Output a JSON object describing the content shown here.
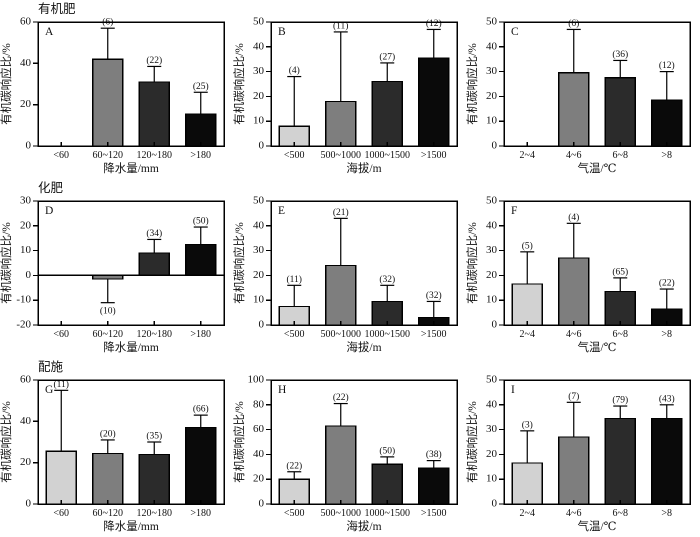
{
  "figure": {
    "background": "#ffffff",
    "axis_color": "#000000",
    "bar_colors": [
      "#d2d2d2",
      "#7e7e7e",
      "#2b2b2b",
      "#0a0a0a"
    ],
    "ylabel": "有机碳响应比/%",
    "row_titles": [
      "有机肥",
      "化肥",
      "配施"
    ]
  },
  "chart_data": [
    {
      "type": "bar",
      "panel": "A",
      "row_title": "有机肥",
      "ylabel": "有机碳响应比/%",
      "xlabel": "降水量/mm",
      "categories": [
        "<60",
        "60~120",
        "120~180",
        ">180"
      ],
      "ylim": [
        0,
        60
      ],
      "ytick_step": 20,
      "values": [
        null,
        42,
        31,
        15.5
      ],
      "errors": [
        null,
        15,
        7.5,
        10.5
      ],
      "counts": [
        null,
        "(6)",
        "(22)",
        "(25)"
      ]
    },
    {
      "type": "bar",
      "panel": "B",
      "row_title": "",
      "ylabel": "有机碳响应比/%",
      "xlabel": "海拔/m",
      "categories": [
        "<500",
        "500~1000",
        "1000~1500",
        ">1500"
      ],
      "ylim": [
        0,
        50
      ],
      "ytick_step": 10,
      "values": [
        8,
        18,
        26,
        35.5
      ],
      "errors": [
        20,
        28,
        7.5,
        11.5
      ],
      "counts": [
        "(4)",
        "(11)",
        "(27)",
        "(12)"
      ]
    },
    {
      "type": "bar",
      "panel": "C",
      "row_title": "",
      "ylabel": "有机碳响应比/%",
      "xlabel": "气温/℃",
      "categories": [
        "2~4",
        "4~6",
        "6~8",
        ">8"
      ],
      "ylim": [
        0,
        50
      ],
      "ytick_step": 10,
      "values": [
        null,
        29.5,
        27.5,
        18.5
      ],
      "errors": [
        null,
        17.5,
        7,
        11.5
      ],
      "counts": [
        null,
        "(6)",
        "(36)",
        "(12)"
      ]
    },
    {
      "type": "bar",
      "panel": "D",
      "row_title": "化肥",
      "ylabel": "有机碳响应比/%",
      "xlabel": "降水量/mm",
      "categories": [
        "<60",
        "60~120",
        "120~180",
        ">180"
      ],
      "ylim": [
        -20,
        30
      ],
      "ytick_step": 10,
      "values": [
        null,
        -1.5,
        9,
        12.5
      ],
      "errors": [
        null,
        9.5,
        5.5,
        7
      ],
      "counts": [
        null,
        "(10)",
        "(34)",
        "(50)"
      ]
    },
    {
      "type": "bar",
      "panel": "E",
      "row_title": "",
      "ylabel": "有机碳响应比/%",
      "xlabel": "海拔/m",
      "categories": [
        "<500",
        "500~1000",
        "1000~1500",
        ">1500"
      ],
      "ylim": [
        0,
        50
      ],
      "ytick_step": 10,
      "values": [
        7.5,
        24,
        9.5,
        3
      ],
      "errors": [
        8.5,
        19,
        6.5,
        6.5
      ],
      "counts": [
        "(11)",
        "(21)",
        "(32)",
        "(32)"
      ]
    },
    {
      "type": "bar",
      "panel": "F",
      "row_title": "",
      "ylabel": "有机碳响应比/%",
      "xlabel": "气温/℃",
      "categories": [
        "2~4",
        "4~6",
        "6~8",
        ">8"
      ],
      "ylim": [
        0,
        50
      ],
      "ytick_step": 10,
      "values": [
        16.5,
        27,
        13.5,
        6.5
      ],
      "errors": [
        13,
        14,
        5.5,
        8
      ],
      "counts": [
        "(5)",
        "(4)",
        "(65)",
        "(22)"
      ]
    },
    {
      "type": "bar",
      "panel": "G",
      "row_title": "配施",
      "ylabel": "有机碳响应比/%",
      "xlabel": "降水量/mm",
      "categories": [
        "<60",
        "60~120",
        "120~180",
        ">180"
      ],
      "ylim": [
        0,
        60
      ],
      "ytick_step": 20,
      "values": [
        25.5,
        24.5,
        24,
        37
      ],
      "errors": [
        29.5,
        6.5,
        6,
        6
      ],
      "counts": [
        "(11)",
        "(20)",
        "(35)",
        "(66)"
      ]
    },
    {
      "type": "bar",
      "panel": "H",
      "row_title": "",
      "ylabel": "有机碳响应比/%",
      "xlabel": "海拔/m",
      "categories": [
        "<500",
        "500~1000",
        "1000~1500",
        ">1500"
      ],
      "ylim": [
        0,
        100
      ],
      "ytick_step": 20,
      "values": [
        20,
        63,
        32,
        29
      ],
      "errors": [
        6,
        18,
        6,
        6
      ],
      "counts": [
        "(22)",
        "(22)",
        "(50)",
        "(38)"
      ]
    },
    {
      "type": "bar",
      "panel": "I",
      "row_title": "",
      "ylabel": "有机碳响应比/%",
      "xlabel": "气温/℃",
      "categories": [
        "2~4",
        "4~6",
        "6~8",
        ">8"
      ],
      "ylim": [
        0,
        50
      ],
      "ytick_step": 10,
      "values": [
        16.5,
        27,
        34.5,
        34.5
      ],
      "errors": [
        13,
        14,
        5,
        5.5
      ],
      "counts": [
        "(3)",
        "(7)",
        "(79)",
        "(43)"
      ]
    }
  ]
}
